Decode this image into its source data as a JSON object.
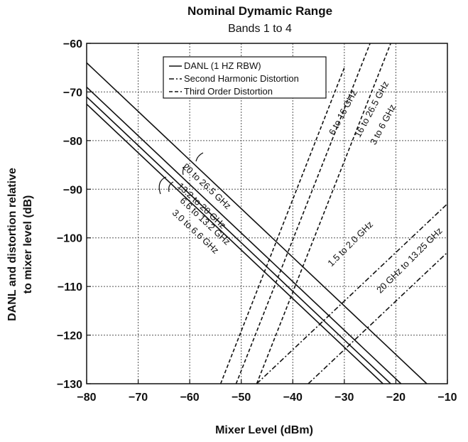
{
  "chart_data": {
    "type": "line",
    "title": "Nominal Dymamic Range",
    "subtitle": "Bands 1 to 4",
    "xlabel": "Mixer Level (dBm)",
    "ylabel_lines": [
      "DANL and distortion relative",
      "to mixer level (dB)"
    ],
    "xlim": [
      -80,
      -10
    ],
    "ylim": [
      -130,
      -60
    ],
    "xticks": [
      "−80",
      "−70",
      "−60",
      "−50",
      "−40",
      "−30",
      "−20",
      "−10"
    ],
    "yticks": [
      "−60",
      "−70",
      "−80",
      "−90",
      "−100",
      "−110",
      "−120",
      "−130"
    ],
    "grid": true,
    "legend": {
      "placement": "top-left",
      "entries": [
        {
          "label": "DANL (1 HZ RBW)",
          "style": "solid"
        },
        {
          "label": "Second Harmonic Distortion",
          "style": "dashdot"
        },
        {
          "label": "Third Order Distortion",
          "style": "dashed"
        }
      ]
    },
    "series": [
      {
        "group": "DANL",
        "style": "solid",
        "label": "20 to 26.5 GHz",
        "points": [
          [
            -80,
            -64
          ],
          [
            -14,
            -130
          ]
        ]
      },
      {
        "group": "DANL",
        "style": "solid",
        "label": "13.2 to 20 GHz",
        "points": [
          [
            -80,
            -69
          ],
          [
            -19,
            -130
          ]
        ]
      },
      {
        "group": "DANL",
        "style": "solid",
        "label": "6.6 to 13.2 GHz",
        "points": [
          [
            -80,
            -71
          ],
          [
            -21,
            -130
          ]
        ]
      },
      {
        "group": "DANL",
        "style": "solid",
        "label": "3.0 to 6.6 GHz",
        "points": [
          [
            -80,
            -72.5
          ],
          [
            -22.5,
            -130
          ]
        ]
      },
      {
        "group": "Third Order Distortion",
        "style": "dashed",
        "label": "6 to 16 GHz",
        "points": [
          [
            -54,
            -130
          ],
          [
            -30,
            -65
          ]
        ]
      },
      {
        "group": "Third Order Distortion",
        "style": "dashed",
        "label": "16 to 26.5 GHz",
        "points": [
          [
            -51,
            -130
          ],
          [
            -25,
            -60
          ]
        ]
      },
      {
        "group": "Third Order Distortion",
        "style": "dashed",
        "label": "3 to 6 GHz",
        "points": [
          [
            -47,
            -130
          ],
          [
            -21,
            -60
          ]
        ]
      },
      {
        "group": "Second Harmonic Distortion",
        "style": "dashdot",
        "label": "1.5 to 2.0 GHz",
        "points": [
          [
            -47,
            -130
          ],
          [
            -10,
            -93
          ]
        ]
      },
      {
        "group": "Second Harmonic Distortion",
        "style": "dashdot",
        "label": "20 GHz to 13.25 GHz",
        "points": [
          [
            -37,
            -130
          ],
          [
            -10,
            -103
          ]
        ]
      }
    ],
    "annotations": [
      {
        "text": "20 to 26.5 GHz",
        "at": [
          -61.5,
          -85.5
        ],
        "angle": 43
      },
      {
        "text": "13.2 to 20 GHz",
        "at": [
          -62.5,
          -89.5
        ],
        "angle": 43
      },
      {
        "text": "6.6 to 13.2 GHz",
        "at": [
          -62,
          -92.5
        ],
        "angle": 43
      },
      {
        "text": "3.0 to 6.6 GHz",
        "at": [
          -63.5,
          -95
        ],
        "angle": 43
      },
      {
        "text": "6 to 16 GHz",
        "at": [
          -32,
          -79
        ],
        "angle": -62
      },
      {
        "text": "16 to 26.5 GHz",
        "at": [
          -27,
          -79.5
        ],
        "angle": -62
      },
      {
        "text": "3 to 6 GHz",
        "at": [
          -24,
          -81
        ],
        "angle": -62
      },
      {
        "text": "1.5 to 2.0 GHz",
        "at": [
          -32.5,
          -106
        ],
        "angle": -45
      },
      {
        "text": "20 GHz to 13.25 GHz",
        "at": [
          -23,
          -111.5
        ],
        "angle": -45
      }
    ]
  }
}
